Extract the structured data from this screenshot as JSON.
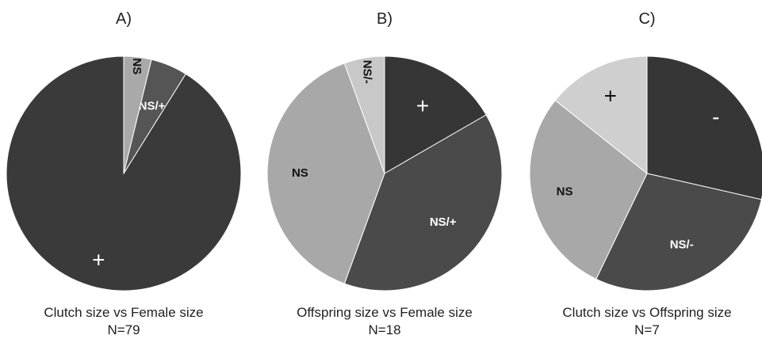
{
  "chart_data": [
    {
      "type": "pie",
      "panel": "A)",
      "caption": "Clutch size vs Female size",
      "n_label": "N=79",
      "slices": [
        {
          "label": "+",
          "value": 72,
          "color": "#3a3a3a",
          "label_color": "#ffffff"
        },
        {
          "label": "NS/+",
          "value": 4,
          "color": "#555555",
          "label_color": "#ffffff"
        },
        {
          "label": "NS",
          "value": 3,
          "color": "#a9a9a9",
          "label_color": "#111111"
        }
      ]
    },
    {
      "type": "pie",
      "panel": "B)",
      "caption": "Offspring size vs Female size",
      "n_label": "N=18",
      "slices": [
        {
          "label": "+",
          "value": 3,
          "color": "#363636",
          "label_color": "#ffffff"
        },
        {
          "label": "NS/+",
          "value": 7,
          "color": "#4a4a4a",
          "label_color": "#ffffff"
        },
        {
          "label": "NS",
          "value": 7,
          "color": "#a8a8a8",
          "label_color": "#111111"
        },
        {
          "label": "NS/-",
          "value": 1,
          "color": "#c8c8c8",
          "label_color": "#111111"
        }
      ]
    },
    {
      "type": "pie",
      "panel": "C)",
      "caption": "Clutch size vs Offspring size",
      "n_label": "N=7",
      "slices": [
        {
          "label": "-",
          "value": 2,
          "color": "#363636",
          "label_color": "#ffffff"
        },
        {
          "label": "NS/-",
          "value": 2,
          "color": "#4a4a4a",
          "label_color": "#ffffff"
        },
        {
          "label": "NS",
          "value": 2,
          "color": "#a8a8a8",
          "label_color": "#111111"
        },
        {
          "label": "+",
          "value": 1,
          "color": "#cfcfcf",
          "label_color": "#111111"
        }
      ]
    }
  ]
}
